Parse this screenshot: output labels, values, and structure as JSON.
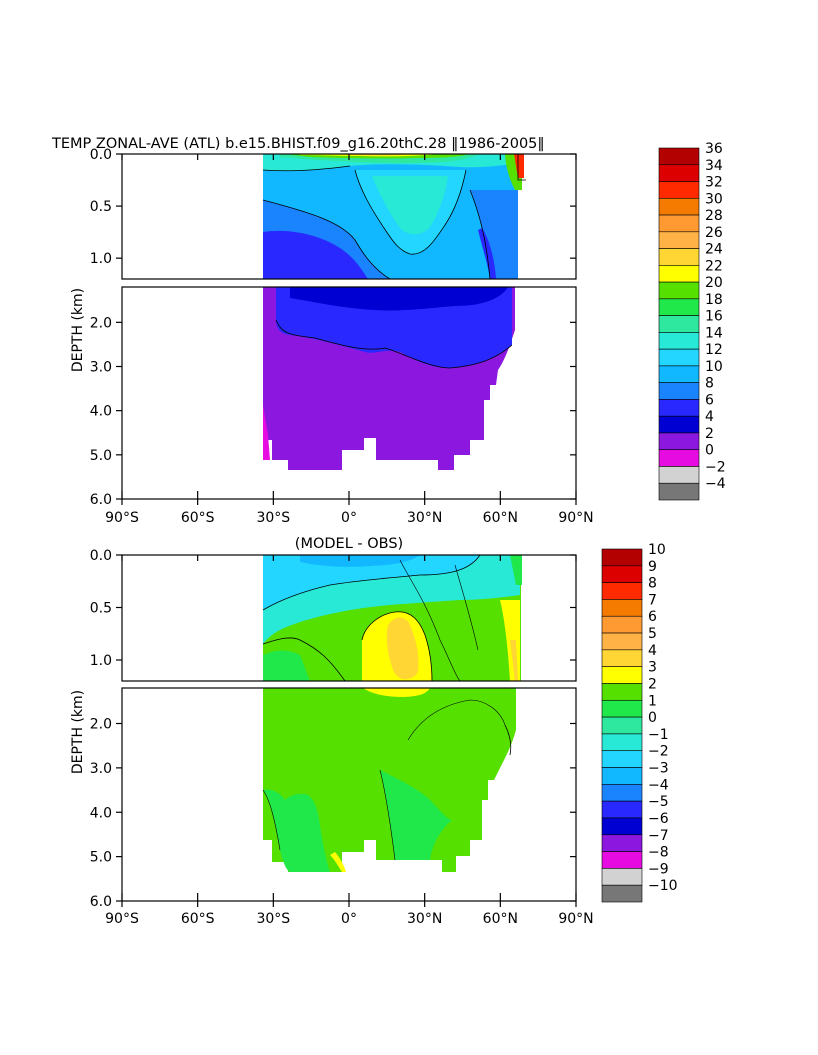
{
  "chart_data": [
    {
      "type": "heatmap",
      "title": "TEMP ZONAL-AVE (ATL) b.e15.BHIST.f09_g16.20thC.28 ‖1986-2005‖",
      "ylabel": "DEPTH (km)",
      "x_range": [
        -90,
        90
      ],
      "x_ticks": [
        "90°S",
        "60°S",
        "30°S",
        "0°",
        "30°N",
        "60°N",
        "90°N"
      ],
      "x_tick_values": [
        -90,
        -60,
        -30,
        0,
        30,
        60,
        90
      ],
      "upper_panel": {
        "y_range": [
          0,
          1.2
        ],
        "y_ticks": [
          "0.0",
          "0.5",
          "1.0"
        ],
        "y_tick_values": [
          0,
          0.5,
          1.0
        ]
      },
      "lower_panel": {
        "y_range": [
          1.2,
          6.0
        ],
        "y_ticks": [
          "2.0",
          "3.0",
          "4.0",
          "5.0",
          "6.0"
        ],
        "y_tick_values": [
          2,
          3,
          4,
          5,
          6
        ]
      },
      "colorbar": {
        "labels": [
          "36",
          "34",
          "32",
          "30",
          "28",
          "26",
          "24",
          "22",
          "20",
          "18",
          "16",
          "14",
          "12",
          "10",
          "8",
          "6",
          "4",
          "2",
          "0",
          "-2",
          "-4"
        ],
        "colors": [
          "#b30000",
          "#dd0000",
          "#ff2a00",
          "#f57a00",
          "#ff9a33",
          "#ffb347",
          "#ffd633",
          "#ffff00",
          "#55e000",
          "#20e84a",
          "#2ee8a0",
          "#28e8d6",
          "#22d6ff",
          "#12b8ff",
          "#1a84ff",
          "#2828ff",
          "#0000d2",
          "#8c18e0",
          "#e60be0",
          "#d2d2d2",
          "#777777"
        ]
      }
    },
    {
      "type": "heatmap",
      "title": "(MODEL - OBS)",
      "ylabel": "DEPTH (km)",
      "x_range": [
        -90,
        90
      ],
      "x_ticks": [
        "90°S",
        "60°S",
        "30°S",
        "0°",
        "30°N",
        "60°N",
        "90°N"
      ],
      "x_tick_values": [
        -90,
        -60,
        -30,
        0,
        30,
        60,
        90
      ],
      "upper_panel": {
        "y_range": [
          0,
          1.2
        ],
        "y_ticks": [
          "0.0",
          "0.5",
          "1.0"
        ],
        "y_tick_values": [
          0,
          0.5,
          1.0
        ]
      },
      "lower_panel": {
        "y_range": [
          1.2,
          6.0
        ],
        "y_ticks": [
          "2.0",
          "3.0",
          "4.0",
          "5.0",
          "6.0"
        ],
        "y_tick_values": [
          2,
          3,
          4,
          5,
          6
        ]
      },
      "colorbar": {
        "labels": [
          "10",
          "9",
          "8",
          "7",
          "6",
          "5",
          "4",
          "3",
          "2",
          "1",
          "0",
          "-1",
          "-2",
          "-3",
          "-4",
          "-5",
          "-6",
          "-7",
          "-8",
          "-9",
          "-10"
        ],
        "colors": [
          "#b30000",
          "#dd0000",
          "#ff2a00",
          "#f57a00",
          "#ff9a33",
          "#ffb347",
          "#ffd633",
          "#ffff00",
          "#55e000",
          "#20e84a",
          "#2ee8a0",
          "#28e8d6",
          "#22d6ff",
          "#12b8ff",
          "#1a84ff",
          "#2828ff",
          "#0000d2",
          "#8c18e0",
          "#e60be0",
          "#d2d2d2",
          "#777777"
        ]
      }
    }
  ]
}
